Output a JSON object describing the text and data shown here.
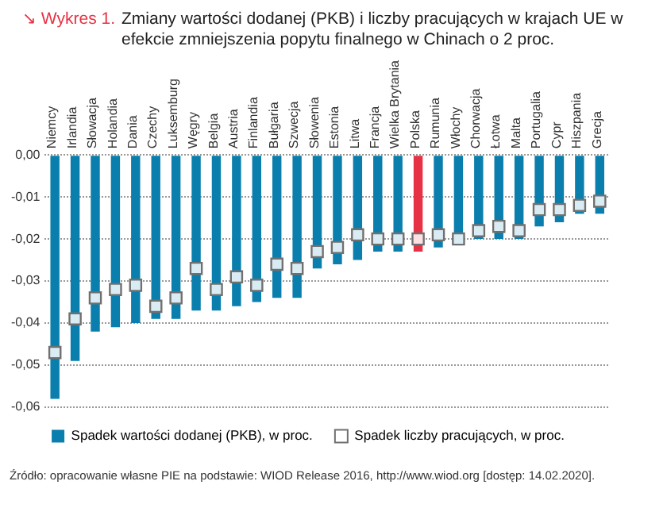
{
  "chart_data": {
    "type": "bar",
    "title": "↘ Wykres 1.",
    "subtitle": "Zmiany wartości dodanej (PKB) i liczby pracujących w krajach UE w efekcie zmniejszenia popytu finalnego w Chinach o 2 proc.",
    "categories": [
      "Niemcy",
      "Irlandia",
      "Słowacja",
      "Holandia",
      "Dania",
      "Czechy",
      "Luksemburg",
      "Węgry",
      "Belgia",
      "Austria",
      "Finlandia",
      "Bułgaria",
      "Szwecja",
      "Słowenia",
      "Estonia",
      "Litwa",
      "Francja",
      "Wielka Brytania",
      "Polska",
      "Rumunia",
      "Włochy",
      "Chorwacja",
      "Łotwa",
      "Malta",
      "Portugalia",
      "Cypr",
      "Hiszpania",
      "Grecja"
    ],
    "series": [
      {
        "name": "Spadek wartości dodanej (PKB), w proc.",
        "color": "#0a7fad",
        "colors": [
          "#0a7fad",
          "#0a7fad",
          "#0a7fad",
          "#0a7fad",
          "#0a7fad",
          "#0a7fad",
          "#0a7fad",
          "#0a7fad",
          "#0a7fad",
          "#0a7fad",
          "#0a7fad",
          "#0a7fad",
          "#0a7fad",
          "#0a7fad",
          "#0a7fad",
          "#0a7fad",
          "#0a7fad",
          "#0a7fad",
          "#e63244",
          "#0a7fad",
          "#0a7fad",
          "#0a7fad",
          "#0a7fad",
          "#0a7fad",
          "#0a7fad",
          "#0a7fad",
          "#0a7fad",
          "#0a7fad"
        ],
        "values": [
          -0.058,
          -0.049,
          -0.042,
          -0.041,
          -0.04,
          -0.039,
          -0.039,
          -0.037,
          -0.037,
          -0.036,
          -0.035,
          -0.034,
          -0.034,
          -0.027,
          -0.026,
          -0.025,
          -0.023,
          -0.023,
          -0.023,
          -0.022,
          -0.021,
          -0.02,
          -0.02,
          -0.02,
          -0.017,
          -0.016,
          -0.014,
          -0.014
        ]
      },
      {
        "name": "Spadek liczby pracujących, w proc.",
        "type": "scatter",
        "marker": "square",
        "color": "#707070",
        "values": [
          -0.047,
          -0.039,
          -0.034,
          -0.032,
          -0.031,
          -0.036,
          -0.034,
          -0.027,
          -0.032,
          -0.029,
          -0.031,
          -0.026,
          -0.027,
          -0.023,
          -0.022,
          -0.019,
          -0.02,
          -0.02,
          -0.02,
          -0.019,
          -0.02,
          -0.018,
          -0.017,
          -0.018,
          -0.013,
          -0.013,
          -0.012,
          -0.011
        ]
      }
    ],
    "ylim": [
      -0.06,
      0
    ],
    "yticks": [
      {
        "value": 0,
        "label": "0,00"
      },
      {
        "value": -0.01,
        "label": "-0,01"
      },
      {
        "value": -0.02,
        "label": "-0,02"
      },
      {
        "value": -0.03,
        "label": "-0,03"
      },
      {
        "value": -0.04,
        "label": "-0,04"
      },
      {
        "value": -0.05,
        "label": "-0,05"
      },
      {
        "value": -0.06,
        "label": "-0,06"
      }
    ],
    "grid": "y",
    "legend": "bottom",
    "annotations": [
      "Źródło: opracowanie własne PIE na podstawie: WIOD Release 2016, http://www.wiod.org [dostęp: 14.02.2020]."
    ]
  }
}
